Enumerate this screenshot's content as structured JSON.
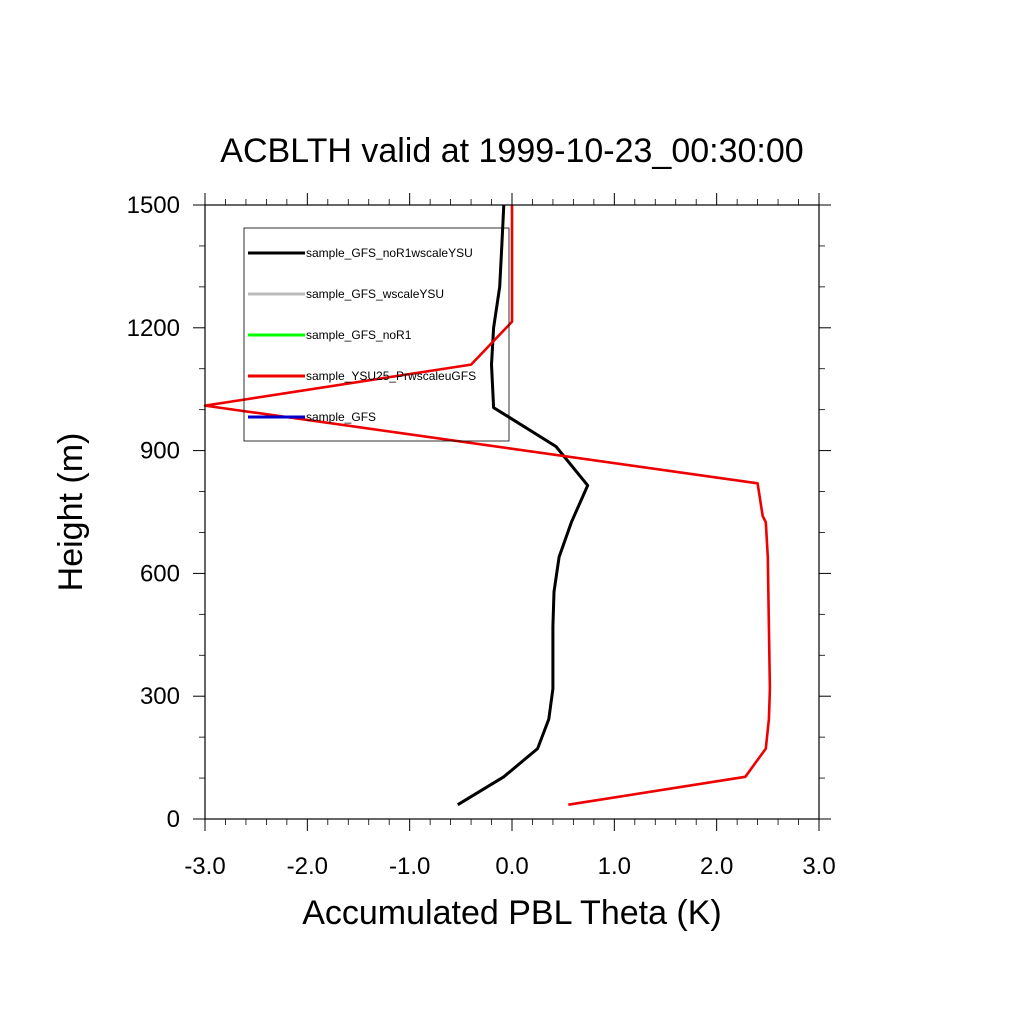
{
  "chart_data": {
    "type": "line",
    "title": "ACBLTH valid at 1999-10-23_00:30:00",
    "xlabel": "Accumulated PBL Theta (K)",
    "ylabel": "Height (m)",
    "xlim": [
      -3.0,
      3.0
    ],
    "ylim": [
      0,
      1500
    ],
    "xticks": [
      -3.0,
      -2.0,
      -1.0,
      0.0,
      1.0,
      2.0,
      3.0
    ],
    "xtick_labels": [
      "-3.0",
      "-2.0",
      "-1.0",
      "0.0",
      "1.0",
      "2.0",
      "3.0"
    ],
    "yticks": [
      0,
      300,
      600,
      900,
      1200,
      1500
    ],
    "ytick_labels": [
      "0",
      "300",
      "600",
      "900",
      "1200",
      "1500"
    ],
    "legend_position": "top-left",
    "grid": false,
    "series": [
      {
        "name": "sample_GFS_noR1wscaleYSU",
        "color": "#000000",
        "x": [
          -0.53,
          -0.08,
          0.25,
          0.36,
          0.4,
          0.4,
          0.4,
          0.41,
          0.46,
          0.58,
          0.74,
          0.43,
          -0.18,
          -0.2,
          -0.18,
          -0.12,
          -0.1,
          -0.08
        ],
        "y": [
          35,
          103,
          172,
          244,
          318,
          390,
          470,
          555,
          640,
          725,
          815,
          910,
          1005,
          1110,
          1200,
          1300,
          1400,
          1500
        ]
      },
      {
        "name": "sample_GFS_wscaleYSU",
        "color": "#bbbbbb",
        "x": [
          -0.53,
          -0.08,
          0.25,
          0.36,
          0.4,
          0.4,
          0.4,
          0.41,
          0.46,
          0.58,
          0.74,
          0.43,
          -0.18,
          -0.2,
          -0.18,
          -0.12,
          -0.1,
          -0.08
        ],
        "y": [
          35,
          103,
          172,
          244,
          318,
          390,
          470,
          555,
          640,
          725,
          815,
          910,
          1005,
          1110,
          1200,
          1300,
          1400,
          1500
        ]
      },
      {
        "name": "sample_GFS_noR1",
        "color": "#00ff00",
        "x": [],
        "y": []
      },
      {
        "name": "sample_YSU25_PrwscaleuGFS",
        "color": "#ee0000",
        "x": [
          0.55,
          2.28,
          2.48,
          2.51,
          2.52,
          2.51,
          2.5,
          2.48,
          2.45,
          2.4,
          -3.0,
          -0.4,
          0.0,
          0.0,
          0.0
        ],
        "y": [
          35,
          103,
          172,
          244,
          318,
          470,
          640,
          725,
          740,
          820,
          1010,
          1110,
          1215,
          1350,
          1500
        ]
      },
      {
        "name": "sample_GFS",
        "color": "#0000cc",
        "x": [],
        "y": []
      }
    ]
  }
}
